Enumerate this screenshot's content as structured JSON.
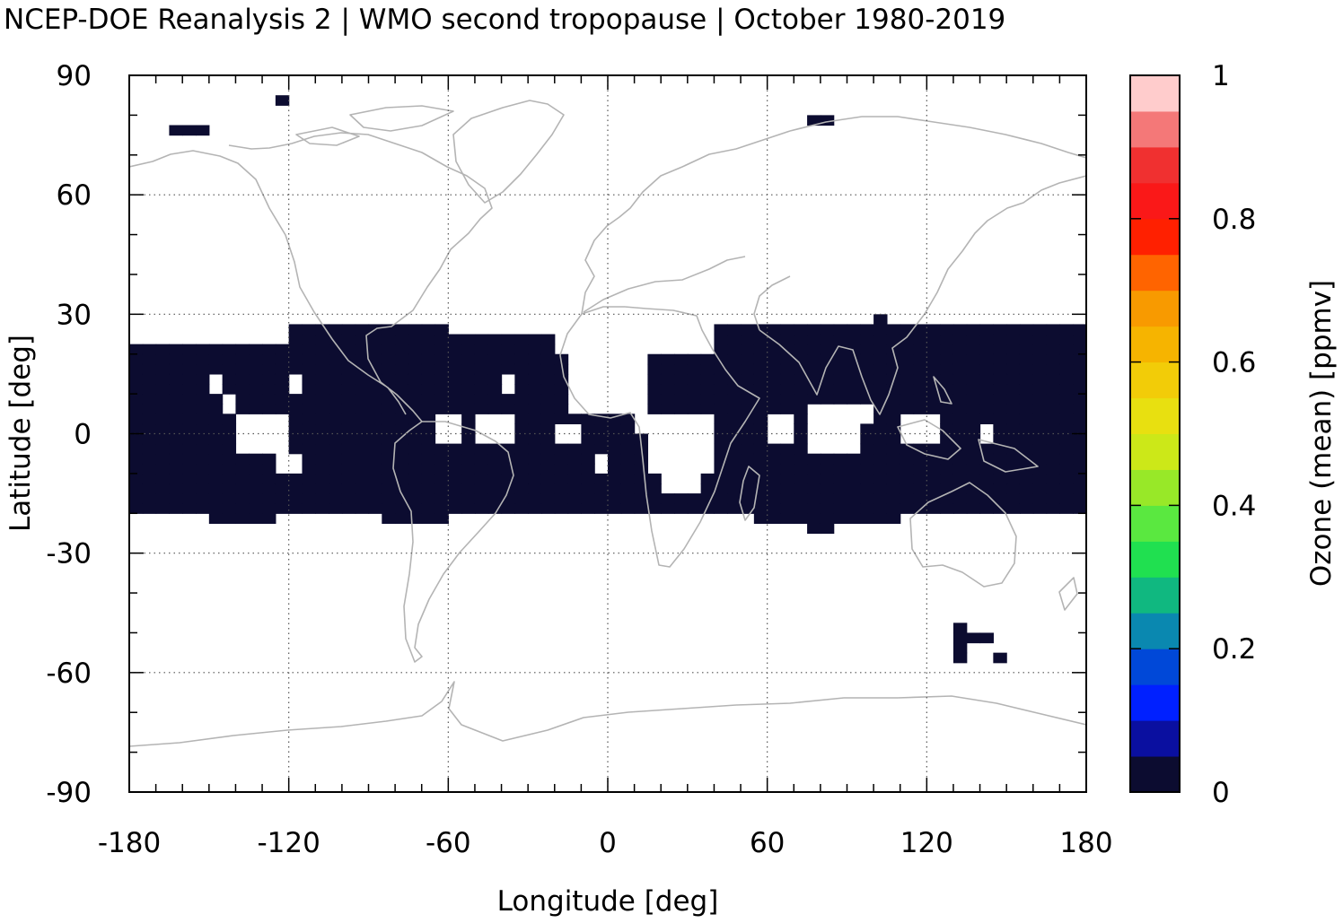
{
  "chart_data": {
    "type": "heatmap",
    "title": "NCEP-DOE Reanalysis 2 | WMO second tropopause | October 1980-2019",
    "xlabel": "Longitude [deg]",
    "ylabel": "Latitude [deg]",
    "colorbar_label": "Ozone (mean) [ppmv]",
    "xlim": [
      -180,
      180
    ],
    "ylim": [
      -90,
      90
    ],
    "xticks": [
      -180,
      -120,
      -60,
      0,
      60,
      120,
      180
    ],
    "xtick_labels": [
      "-180",
      "-120",
      "-60",
      "0",
      "60",
      "120",
      "180"
    ],
    "yticks": [
      90,
      60,
      30,
      0,
      -30,
      -60,
      -90
    ],
    "ytick_labels": [
      "90",
      "60",
      "30",
      "0",
      "-30",
      "-60",
      "-90"
    ],
    "grid": true,
    "colorbar": {
      "range": [
        0,
        1
      ],
      "ticks": [
        1,
        0.8,
        0.6,
        0.4,
        0.2,
        0
      ],
      "tick_labels": [
        "1",
        "0.8",
        "0.6",
        "0.4",
        "0.2",
        "0"
      ],
      "colors": [
        "#0c0c30",
        "#0a0fa0",
        "#0020ff",
        "#0048d8",
        "#0a88b0",
        "#10b880",
        "#20e050",
        "#5ae840",
        "#98e828",
        "#cce818",
        "#e8e010",
        "#f2cc08",
        "#f6b400",
        "#f89a00",
        "#ff6400",
        "#ff2000",
        "#fa1818",
        "#f03030",
        "#f47878",
        "#ffcccc"
      ]
    },
    "cell_size_deg": [
      5,
      2.5
    ],
    "data_value": 0.02,
    "data_regions": [
      {
        "lon": [
          -180,
          180
        ],
        "lat": [
          -20,
          20
        ],
        "value": 0.02
      },
      {
        "lon": [
          -180,
          -115
        ],
        "lat": [
          20,
          22.5
        ],
        "value": 0.02
      },
      {
        "lon": [
          -120,
          -60
        ],
        "lat": [
          20,
          27.5
        ],
        "value": 0.02
      },
      {
        "lon": [
          -60,
          -20
        ],
        "lat": [
          20,
          25
        ],
        "value": 0.02
      },
      {
        "lon": [
          40,
          180
        ],
        "lat": [
          20,
          27.5
        ],
        "value": 0.02
      },
      {
        "lon": [
          100,
          105
        ],
        "lat": [
          27.5,
          30
        ],
        "value": 0.02
      },
      {
        "lon": [
          -150,
          -125
        ],
        "lat": [
          -22.5,
          -20
        ],
        "value": 0.02
      },
      {
        "lon": [
          -85,
          -60
        ],
        "lat": [
          -22.5,
          -20
        ],
        "value": 0.02
      },
      {
        "lon": [
          55,
          110
        ],
        "lat": [
          -22.5,
          -20
        ],
        "value": 0.02
      },
      {
        "lon": [
          75,
          85
        ],
        "lat": [
          -25,
          -22.5
        ],
        "value": 0.02
      },
      {
        "lon": [
          -165,
          -150
        ],
        "lat": [
          75,
          77.5
        ],
        "value": 0.02
      },
      {
        "lon": [
          -125,
          -120
        ],
        "lat": [
          82.5,
          85
        ],
        "value": 0.02
      },
      {
        "lon": [
          75,
          85
        ],
        "lat": [
          77.5,
          80
        ],
        "value": 0.02
      },
      {
        "lon": [
          130,
          135
        ],
        "lat": [
          -57.5,
          -47.5
        ],
        "value": 0.02
      },
      {
        "lon": [
          130,
          145
        ],
        "lat": [
          -52.5,
          -50
        ],
        "value": 0.02
      },
      {
        "lon": [
          145,
          150
        ],
        "lat": [
          -57.5,
          -55
        ],
        "value": 0.02
      }
    ],
    "gap_regions": [
      {
        "lon": [
          -150,
          -145
        ],
        "lat": [
          10,
          15
        ]
      },
      {
        "lon": [
          -145,
          -140
        ],
        "lat": [
          5,
          10
        ]
      },
      {
        "lon": [
          -140,
          -120
        ],
        "lat": [
          -5,
          5
        ]
      },
      {
        "lon": [
          -125,
          -115
        ],
        "lat": [
          -10,
          -5
        ]
      },
      {
        "lon": [
          -120,
          -115
        ],
        "lat": [
          10,
          15
        ]
      },
      {
        "lon": [
          -65,
          -55
        ],
        "lat": [
          -2.5,
          5
        ]
      },
      {
        "lon": [
          -50,
          -35
        ],
        "lat": [
          -2.5,
          5
        ]
      },
      {
        "lon": [
          -40,
          -35
        ],
        "lat": [
          10,
          15
        ]
      },
      {
        "lon": [
          -20,
          -10
        ],
        "lat": [
          -2.5,
          2.5
        ]
      },
      {
        "lon": [
          -5,
          0
        ],
        "lat": [
          -10,
          -5
        ]
      },
      {
        "lon": [
          -15,
          15
        ],
        "lat": [
          5,
          22.5
        ]
      },
      {
        "lon": [
          10,
          40
        ],
        "lat": [
          0,
          5
        ]
      },
      {
        "lon": [
          15,
          40
        ],
        "lat": [
          -10,
          0
        ]
      },
      {
        "lon": [
          20,
          35
        ],
        "lat": [
          -15,
          -10
        ]
      },
      {
        "lon": [
          60,
          70
        ],
        "lat": [
          -2.5,
          5
        ]
      },
      {
        "lon": [
          75,
          100
        ],
        "lat": [
          2.5,
          7.5
        ]
      },
      {
        "lon": [
          75,
          95
        ],
        "lat": [
          -5,
          2.5
        ]
      },
      {
        "lon": [
          110,
          125
        ],
        "lat": [
          -2.5,
          5
        ]
      },
      {
        "lon": [
          140,
          145
        ],
        "lat": [
          -2.5,
          2.5
        ]
      }
    ]
  }
}
